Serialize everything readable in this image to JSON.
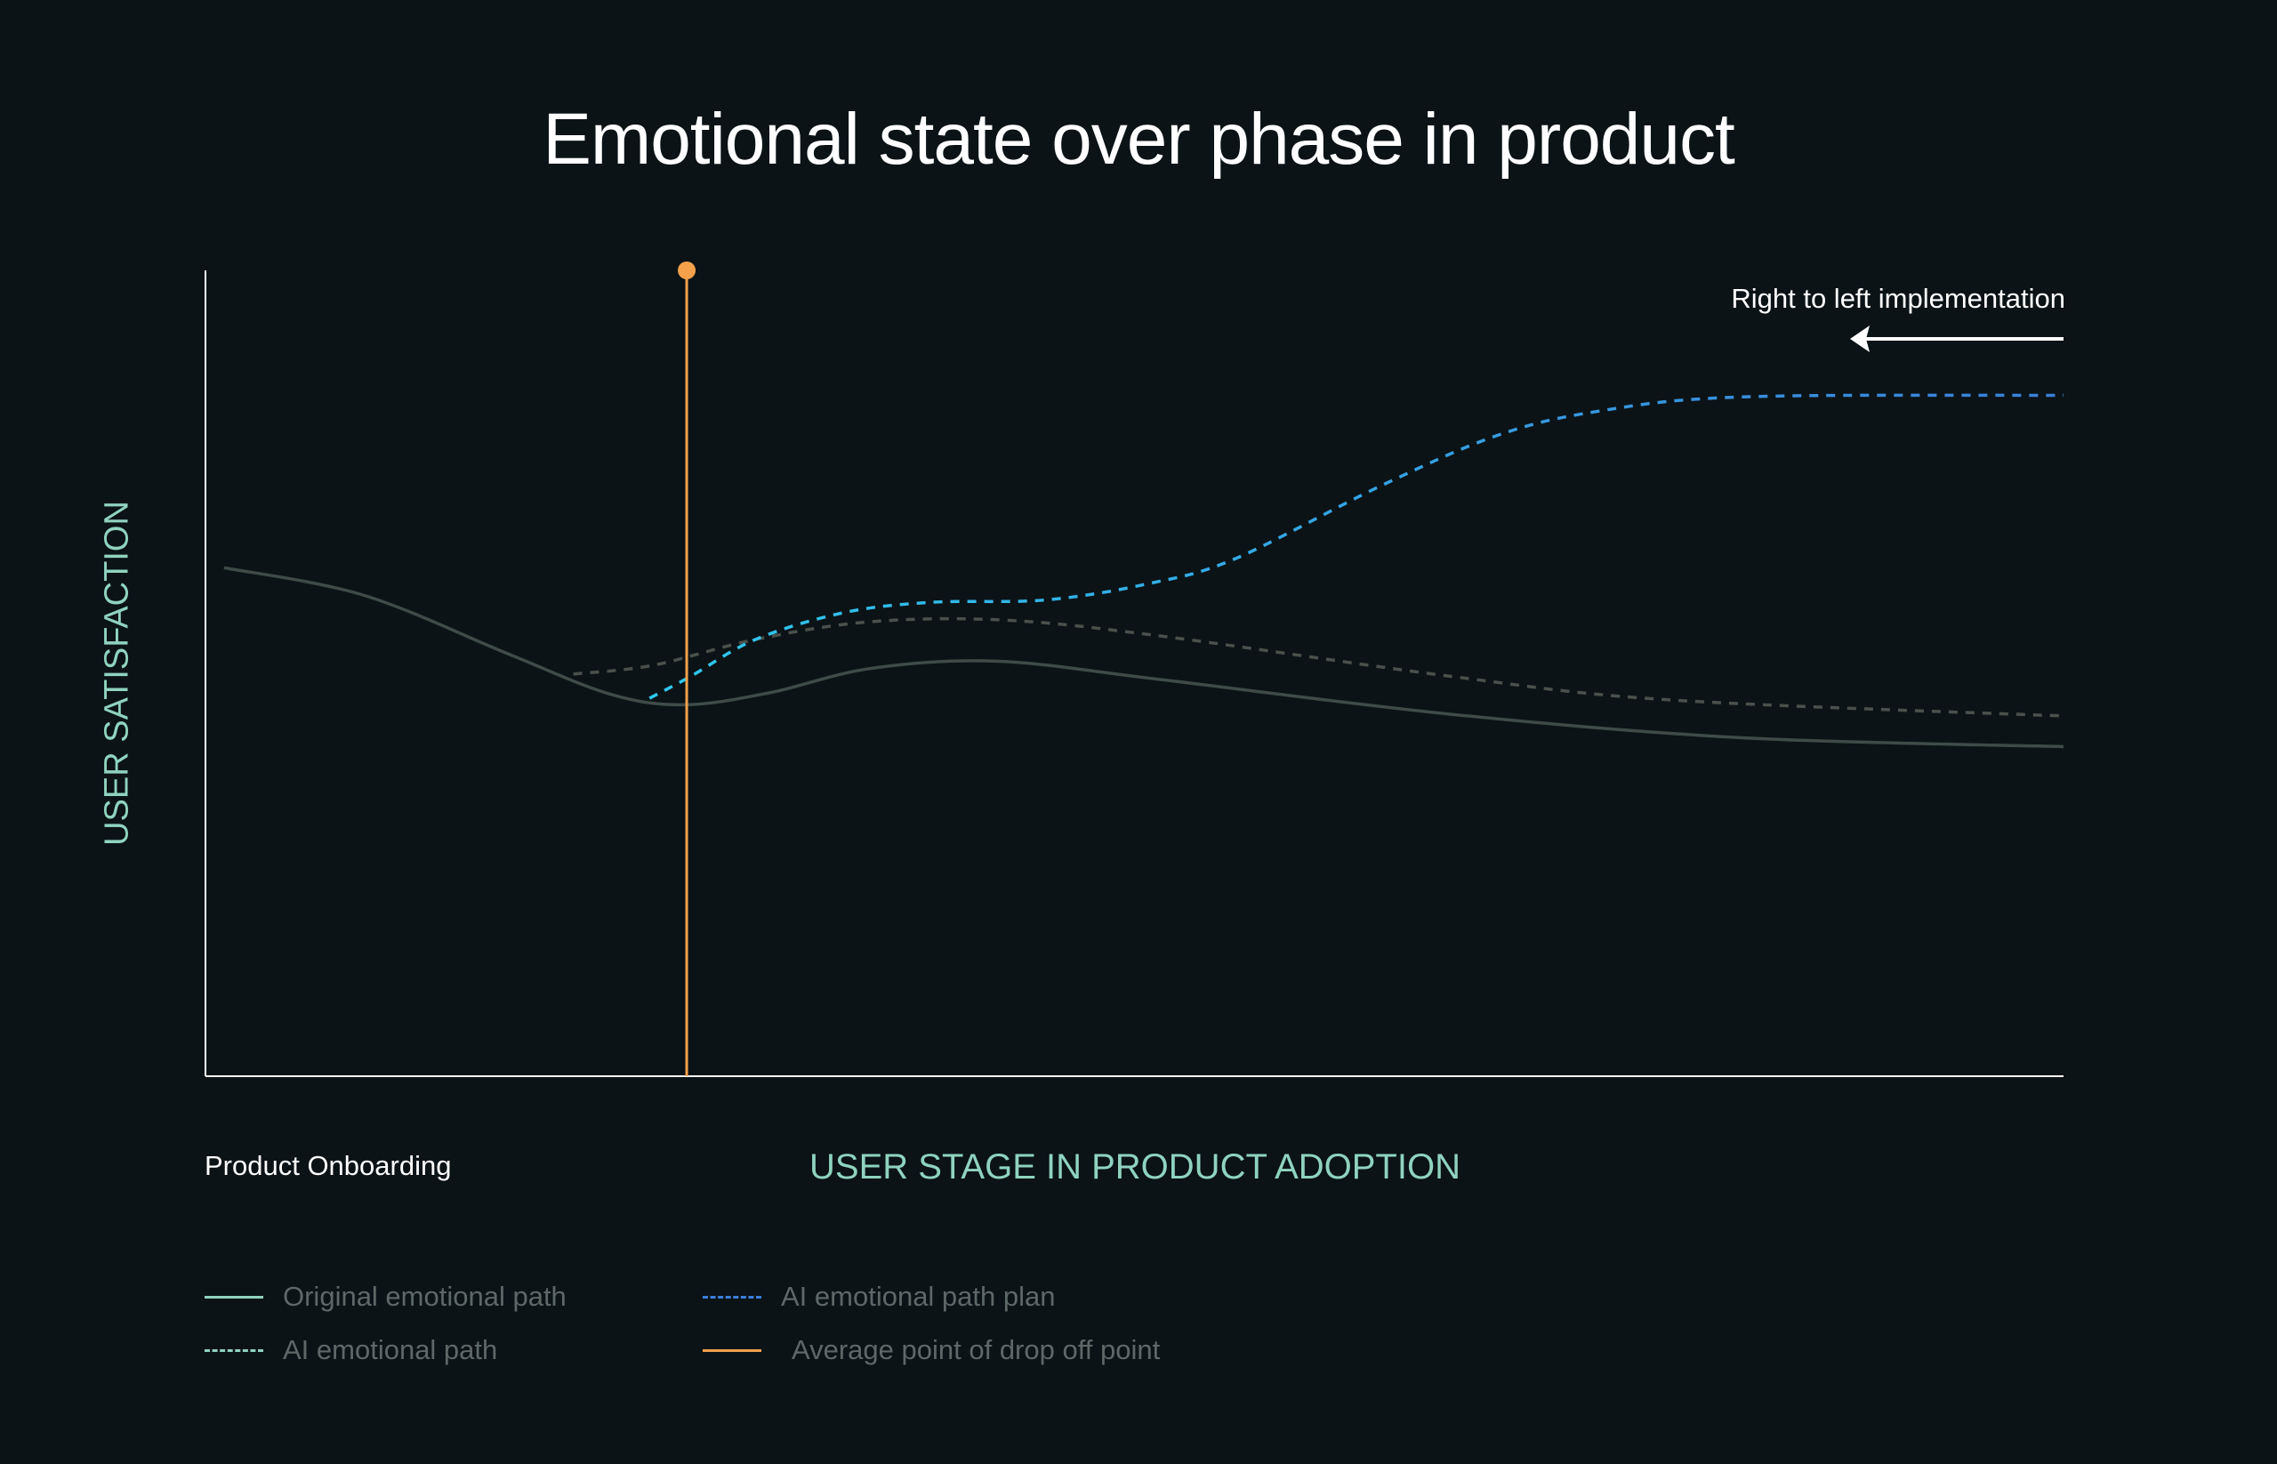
{
  "chart_data": {
    "type": "line",
    "title": "Emotional state over phase in product",
    "xlabel": "USER STAGE IN PRODUCT ADOPTION",
    "ylabel": "USER SATISFACTION",
    "x_start_label": "Product Onboarding",
    "xlim": [
      0,
      100
    ],
    "ylim": [
      0,
      100
    ],
    "grid": false,
    "legend_position": "bottom-left",
    "annotation": {
      "text": "Right to left implementation",
      "arrow": "left",
      "color": "#ffffff"
    },
    "drop_off": {
      "name": "Average point of drop off point",
      "x": 25.9,
      "color": "#f5a04a"
    },
    "series": [
      {
        "name": "Original emotional path",
        "style": "solid",
        "color": "#3f4b47",
        "legend_color": "#8fd3bf",
        "points": [
          [
            1,
            63.1
          ],
          [
            8.5,
            59.7
          ],
          [
            16.3,
            52.4
          ],
          [
            21.8,
            47.4
          ],
          [
            25.8,
            46.1
          ],
          [
            30.4,
            47.6
          ],
          [
            35.8,
            50.6
          ],
          [
            42.6,
            51.5
          ],
          [
            51.5,
            49.2
          ],
          [
            67.1,
            44.9
          ],
          [
            82.7,
            42.0
          ],
          [
            100,
            40.9
          ]
        ]
      },
      {
        "name": "AI emotional path",
        "style": "dashed",
        "color": "#4a514b",
        "legend_color": "#8fd3bf",
        "points": [
          [
            19.8,
            49.9
          ],
          [
            24.1,
            51.0
          ],
          [
            29.6,
            54.2
          ],
          [
            35.8,
            56.4
          ],
          [
            43.0,
            56.6
          ],
          [
            51.5,
            54.6
          ],
          [
            67.1,
            49.6
          ],
          [
            78.8,
            46.7
          ],
          [
            100,
            44.7
          ]
        ]
      },
      {
        "name": "AI emotional path plan",
        "style": "dashed",
        "color": "#2fb8e8",
        "legend_color": "#3a7fd8",
        "points": [
          [
            23.9,
            46.9
          ],
          [
            26.1,
            49.6
          ],
          [
            29.6,
            54.2
          ],
          [
            34.3,
            57.5
          ],
          [
            39.0,
            58.8
          ],
          [
            45.2,
            59.1
          ],
          [
            50.7,
            61.1
          ],
          [
            55.4,
            64.2
          ],
          [
            63.2,
            73.2
          ],
          [
            69.5,
            79.5
          ],
          [
            74.9,
            82.5
          ],
          [
            82.7,
            84.3
          ],
          [
            100,
            84.5
          ]
        ]
      }
    ]
  }
}
